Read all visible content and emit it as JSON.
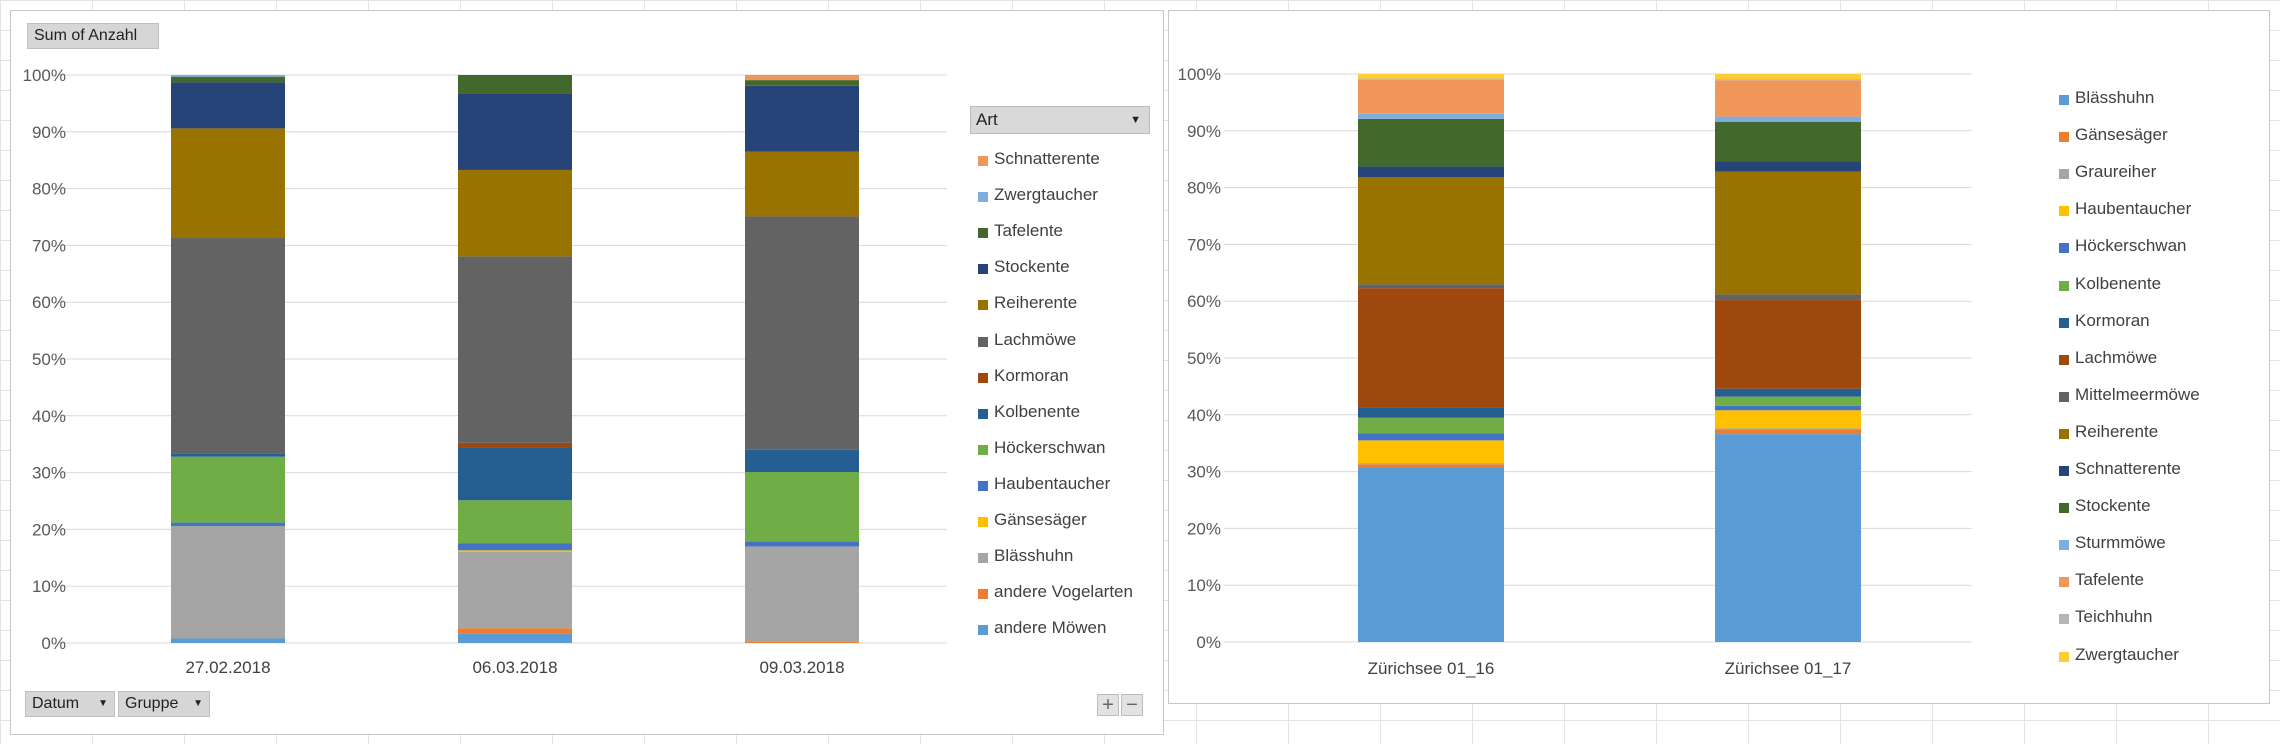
{
  "left": {
    "field_button": "Sum of Anzahl",
    "legend_header": "Art",
    "row_buttons": [
      "Datum",
      "Gruppe"
    ],
    "zoom": {
      "plus": "+",
      "minus": "−"
    }
  },
  "chart_data": [
    {
      "type": "bar",
      "stacked": "percent",
      "categories": [
        "27.02.2018",
        "06.03.2018",
        "09.03.2018"
      ],
      "y_ticks": [
        "0%",
        "10%",
        "20%",
        "30%",
        "40%",
        "50%",
        "60%",
        "70%",
        "80%",
        "90%",
        "100%"
      ],
      "ylim": [
        0,
        100
      ],
      "grid": true,
      "legend_placement": "right",
      "legend_title": "Art",
      "series": [
        {
          "name": "andere Möwen",
          "color": "#5b9bd5",
          "values": [
            0.8,
            1.6,
            0
          ]
        },
        {
          "name": "andere Vogelarten",
          "color": "#ed7d31",
          "values": [
            0,
            1.0,
            0.3
          ]
        },
        {
          "name": "Blässhuhn",
          "color": "#a5a5a5",
          "values": [
            19.8,
            13.4,
            16.7
          ]
        },
        {
          "name": "Gänsesäger",
          "color": "#ffc000",
          "values": [
            0,
            0.3,
            0
          ]
        },
        {
          "name": "Haubentaucher",
          "color": "#4472c4",
          "values": [
            0.6,
            1.2,
            0.9
          ]
        },
        {
          "name": "Höckerschwan",
          "color": "#70ad47",
          "values": [
            11.6,
            7.6,
            12.2
          ]
        },
        {
          "name": "Kolbenente",
          "color": "#255e91",
          "values": [
            0.6,
            9.2,
            3.9
          ]
        },
        {
          "name": "Kormoran",
          "color": "#9e480e",
          "values": [
            0,
            0.9,
            0
          ]
        },
        {
          "name": "Lachmöwe",
          "color": "#636363",
          "values": [
            37.9,
            32.8,
            41.1
          ]
        },
        {
          "name": "Reiherente",
          "color": "#997300",
          "values": [
            19.3,
            15.2,
            11.4
          ]
        },
        {
          "name": "Stockente",
          "color": "#264478",
          "values": [
            8.1,
            13.5,
            11.6
          ]
        },
        {
          "name": "Tafelente",
          "color": "#43682b",
          "values": [
            1.0,
            3.2,
            1.0
          ]
        },
        {
          "name": "Zwergtaucher",
          "color": "#7cafdd",
          "values": [
            0.3,
            0,
            0
          ]
        },
        {
          "name": "Schnatterente",
          "color": "#f1975a",
          "values": [
            0,
            0,
            0.9
          ]
        }
      ]
    },
    {
      "type": "bar",
      "stacked": "percent",
      "categories": [
        "Zürichsee 01_16",
        "Zürichsee 01_17"
      ],
      "y_ticks": [
        "0%",
        "10%",
        "20%",
        "30%",
        "40%",
        "50%",
        "60%",
        "70%",
        "80%",
        "90%",
        "100%"
      ],
      "ylim": [
        0,
        100
      ],
      "grid": true,
      "legend_placement": "right",
      "series": [
        {
          "name": "Blässhuhn",
          "color": "#5b9bd5",
          "values": [
            30.8,
            36.6
          ]
        },
        {
          "name": "Gänsesäger",
          "color": "#ed7d31",
          "values": [
            0.5,
            0.8
          ]
        },
        {
          "name": "Graureiher",
          "color": "#a5a5a5",
          "values": [
            0.2,
            0.2
          ]
        },
        {
          "name": "Haubentaucher",
          "color": "#ffc000",
          "values": [
            4.0,
            3.2
          ]
        },
        {
          "name": "Höckerschwan",
          "color": "#4472c4",
          "values": [
            1.2,
            0.8
          ]
        },
        {
          "name": "Kolbenente",
          "color": "#70ad47",
          "values": [
            2.8,
            1.6
          ]
        },
        {
          "name": "Kormoran",
          "color": "#255e91",
          "values": [
            1.8,
            1.4
          ]
        },
        {
          "name": "Lachmöwe",
          "color": "#9e480e",
          "values": [
            21.0,
            15.6
          ]
        },
        {
          "name": "Mittelmeermöwe",
          "color": "#636363",
          "values": [
            0.7,
            1.0
          ]
        },
        {
          "name": "Reiherente",
          "color": "#997300",
          "values": [
            18.8,
            21.6
          ]
        },
        {
          "name": "Schnatterente",
          "color": "#264478",
          "values": [
            1.9,
            1.8
          ]
        },
        {
          "name": "Stockente",
          "color": "#43682b",
          "values": [
            8.4,
            7.0
          ]
        },
        {
          "name": "Sturmmöwe",
          "color": "#7cafdd",
          "values": [
            0.9,
            0.9
          ]
        },
        {
          "name": "Tafelente",
          "color": "#f1975a",
          "values": [
            6.0,
            6.4
          ]
        },
        {
          "name": "Teichhuhn",
          "color": "#b7b7b7",
          "values": [
            0.2,
            0.2
          ]
        },
        {
          "name": "Zwergtaucher",
          "color": "#ffcd33",
          "values": [
            0.8,
            0.9
          ]
        }
      ]
    }
  ],
  "left_legend_order": [
    "Schnatterente",
    "Zwergtaucher",
    "Tafelente",
    "Stockente",
    "Reiherente",
    "Lachmöwe",
    "Kormoran",
    "Kolbenente",
    "Höckerschwan",
    "Haubentaucher",
    "Gänsesäger",
    "Blässhuhn",
    "andere Vogelarten",
    "andere Möwen"
  ]
}
